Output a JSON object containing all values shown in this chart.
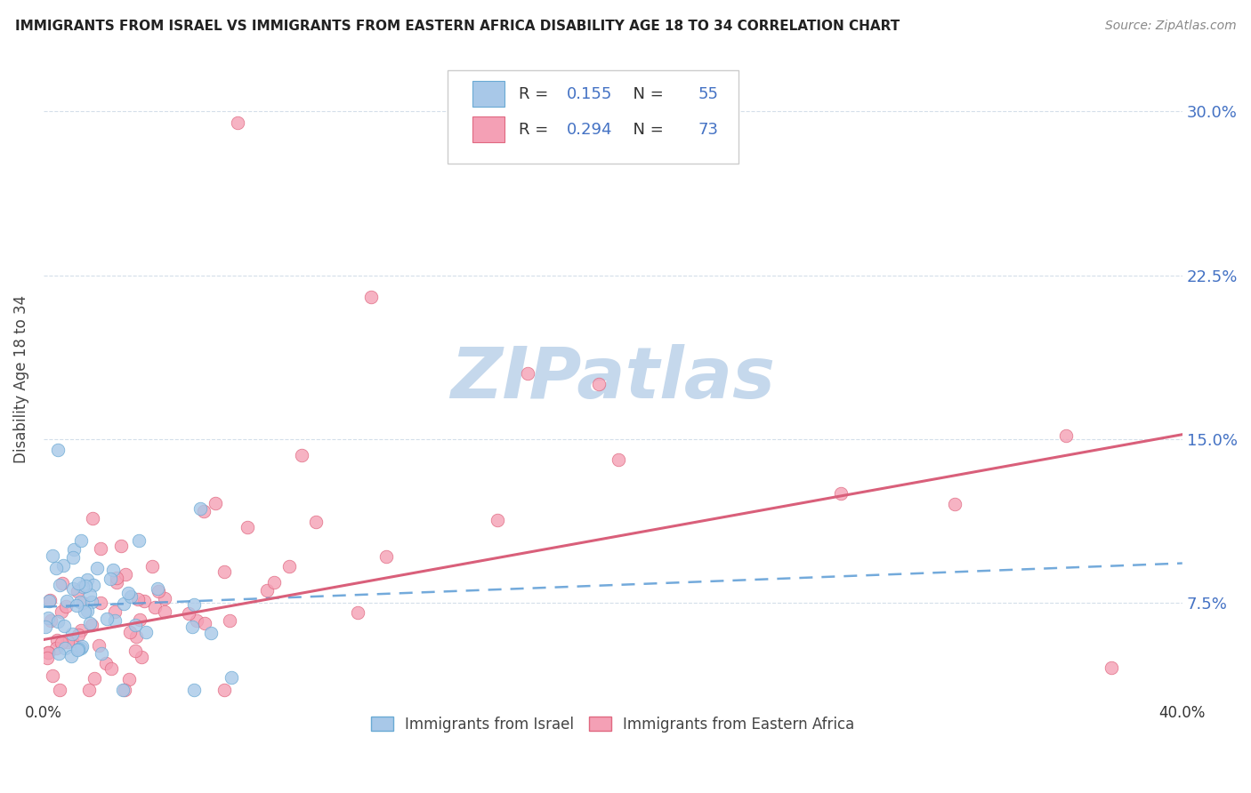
{
  "title": "IMMIGRANTS FROM ISRAEL VS IMMIGRANTS FROM EASTERN AFRICA DISABILITY AGE 18 TO 34 CORRELATION CHART",
  "source": "Source: ZipAtlas.com",
  "ylabel": "Disability Age 18 to 34",
  "ytick_labels": [
    "7.5%",
    "15.0%",
    "22.5%",
    "30.0%"
  ],
  "ytick_values": [
    0.075,
    0.15,
    0.225,
    0.3
  ],
  "xmin": 0.0,
  "xmax": 0.4,
  "ymin": 0.03,
  "ymax": 0.325,
  "legend1_R": "0.155",
  "legend1_N": "55",
  "legend2_R": "0.294",
  "legend2_N": "73",
  "israel_color": "#a8c8e8",
  "israel_color_dark": "#6aaad4",
  "eastern_africa_color": "#f4a0b5",
  "eastern_africa_color_dark": "#e06880",
  "israel_line_color": "#5b9bd5",
  "eastern_africa_line_color": "#d95f7a",
  "watermark": "ZIPatlas",
  "watermark_color": "#c5d8ec",
  "background_color": "#ffffff",
  "grid_color": "#d0dce8",
  "legend_label_israel": "Immigrants from Israel",
  "legend_label_eastern": "Immigrants from Eastern Africa",
  "title_color": "#222222",
  "source_color": "#888888",
  "axis_color": "#4472c4",
  "text_color": "#444444"
}
